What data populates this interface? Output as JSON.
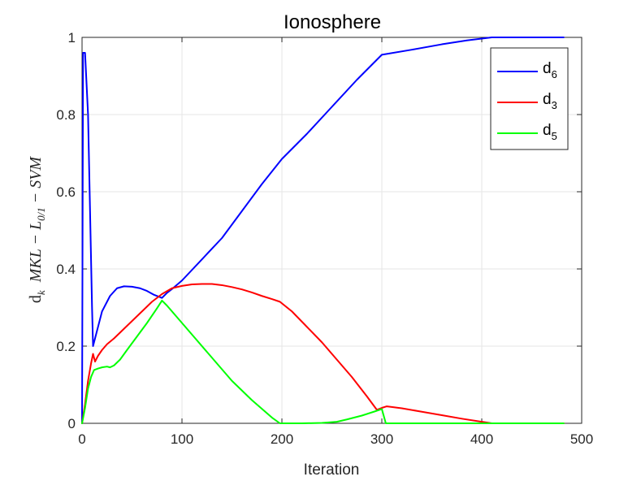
{
  "chart_data": {
    "type": "line",
    "title": "Ionosphere",
    "xlabel": "Iteration",
    "ylabel": {
      "prefix": "d",
      "prefix_sub": "k",
      "text1": "MKL − L",
      "sub": "0/1",
      "text2": " − SVM"
    },
    "xlim": [
      0,
      500
    ],
    "ylim": [
      0,
      1
    ],
    "xticks": [
      0,
      100,
      200,
      300,
      400,
      500
    ],
    "yticks": [
      0,
      0.2,
      0.4,
      0.6,
      0.8,
      1
    ],
    "xtick_labels": [
      "0",
      "100",
      "200",
      "300",
      "400",
      "500"
    ],
    "ytick_labels": [
      "0",
      "0.2",
      "0.4",
      "0.6",
      "0.8",
      "1"
    ],
    "grid": true,
    "legend_position": "top-right",
    "series": [
      {
        "name": "d6",
        "name_main": "d",
        "name_sub": "6",
        "color": "#0000ff",
        "points": [
          [
            0,
            0.0
          ],
          [
            1,
            0.96
          ],
          [
            3,
            0.96
          ],
          [
            6,
            0.8
          ],
          [
            8,
            0.55
          ],
          [
            10,
            0.3
          ],
          [
            11,
            0.2
          ],
          [
            14,
            0.23
          ],
          [
            20,
            0.29
          ],
          [
            28,
            0.33
          ],
          [
            35,
            0.35
          ],
          [
            42,
            0.355
          ],
          [
            50,
            0.354
          ],
          [
            58,
            0.35
          ],
          [
            65,
            0.343
          ],
          [
            72,
            0.333
          ],
          [
            80,
            0.325
          ],
          [
            85,
            0.338
          ],
          [
            90,
            0.348
          ],
          [
            100,
            0.37
          ],
          [
            120,
            0.425
          ],
          [
            140,
            0.48
          ],
          [
            160,
            0.55
          ],
          [
            180,
            0.62
          ],
          [
            200,
            0.685
          ],
          [
            225,
            0.75
          ],
          [
            250,
            0.82
          ],
          [
            275,
            0.89
          ],
          [
            300,
            0.955
          ],
          [
            330,
            0.968
          ],
          [
            360,
            0.982
          ],
          [
            385,
            0.992
          ],
          [
            410,
            1.0
          ],
          [
            440,
            1.0
          ],
          [
            482,
            1.0
          ]
        ]
      },
      {
        "name": "d3",
        "name_main": "d",
        "name_sub": "3",
        "color": "#ff0000",
        "points": [
          [
            0,
            0.0
          ],
          [
            3,
            0.05
          ],
          [
            6,
            0.11
          ],
          [
            9,
            0.155
          ],
          [
            11,
            0.18
          ],
          [
            13,
            0.16
          ],
          [
            16,
            0.175
          ],
          [
            20,
            0.19
          ],
          [
            25,
            0.205
          ],
          [
            32,
            0.22
          ],
          [
            40,
            0.24
          ],
          [
            50,
            0.265
          ],
          [
            60,
            0.29
          ],
          [
            70,
            0.315
          ],
          [
            80,
            0.335
          ],
          [
            90,
            0.35
          ],
          [
            100,
            0.356
          ],
          [
            110,
            0.36
          ],
          [
            120,
            0.361
          ],
          [
            130,
            0.361
          ],
          [
            140,
            0.358
          ],
          [
            150,
            0.353
          ],
          [
            160,
            0.347
          ],
          [
            170,
            0.339
          ],
          [
            180,
            0.33
          ],
          [
            190,
            0.322
          ],
          [
            198,
            0.315
          ],
          [
            210,
            0.29
          ],
          [
            225,
            0.25
          ],
          [
            240,
            0.21
          ],
          [
            255,
            0.165
          ],
          [
            270,
            0.12
          ],
          [
            285,
            0.07
          ],
          [
            295,
            0.035
          ],
          [
            300,
            0.04
          ],
          [
            305,
            0.044
          ],
          [
            320,
            0.039
          ],
          [
            340,
            0.03
          ],
          [
            360,
            0.021
          ],
          [
            380,
            0.012
          ],
          [
            400,
            0.004
          ],
          [
            410,
            0.0
          ],
          [
            440,
            0.0
          ],
          [
            482,
            0.0
          ]
        ]
      },
      {
        "name": "d5",
        "name_main": "d",
        "name_sub": "5",
        "color": "#00ff00",
        "points": [
          [
            0,
            0.0
          ],
          [
            3,
            0.04
          ],
          [
            6,
            0.09
          ],
          [
            9,
            0.12
          ],
          [
            12,
            0.138
          ],
          [
            16,
            0.142
          ],
          [
            20,
            0.145
          ],
          [
            25,
            0.147
          ],
          [
            28,
            0.145
          ],
          [
            32,
            0.15
          ],
          [
            38,
            0.165
          ],
          [
            45,
            0.19
          ],
          [
            55,
            0.225
          ],
          [
            65,
            0.26
          ],
          [
            75,
            0.298
          ],
          [
            80,
            0.318
          ],
          [
            85,
            0.305
          ],
          [
            95,
            0.275
          ],
          [
            110,
            0.23
          ],
          [
            130,
            0.17
          ],
          [
            150,
            0.11
          ],
          [
            170,
            0.06
          ],
          [
            190,
            0.015
          ],
          [
            198,
            0.0
          ],
          [
            220,
            0.0
          ],
          [
            240,
            0.001
          ],
          [
            255,
            0.004
          ],
          [
            265,
            0.01
          ],
          [
            280,
            0.02
          ],
          [
            292,
            0.03
          ],
          [
            300,
            0.037
          ],
          [
            304,
            0.0
          ],
          [
            340,
            0.0
          ],
          [
            400,
            0.0
          ],
          [
            482,
            0.0
          ]
        ]
      }
    ]
  }
}
